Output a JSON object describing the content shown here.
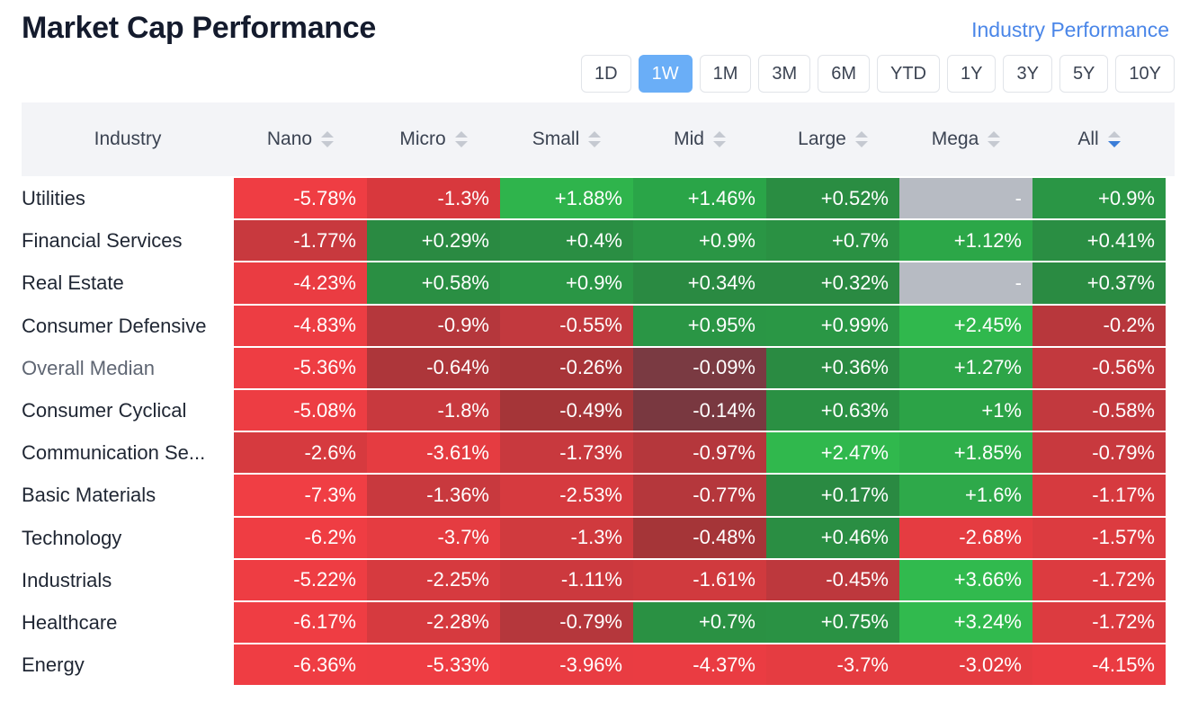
{
  "header": {
    "title": "Market Cap Performance",
    "link_label": "Industry Performance"
  },
  "periods": [
    {
      "label": "1D",
      "active": false
    },
    {
      "label": "1W",
      "active": true
    },
    {
      "label": "1M",
      "active": false
    },
    {
      "label": "3M",
      "active": false
    },
    {
      "label": "6M",
      "active": false
    },
    {
      "label": "YTD",
      "active": false
    },
    {
      "label": "1Y",
      "active": false
    },
    {
      "label": "3Y",
      "active": false
    },
    {
      "label": "5Y",
      "active": false
    },
    {
      "label": "10Y",
      "active": false
    }
  ],
  "table": {
    "industry_header": "Industry",
    "columns": [
      {
        "label": "Nano",
        "sort": "none"
      },
      {
        "label": "Micro",
        "sort": "none"
      },
      {
        "label": "Small",
        "sort": "none"
      },
      {
        "label": "Mid",
        "sort": "none"
      },
      {
        "label": "Large",
        "sort": "none"
      },
      {
        "label": "Mega",
        "sort": "none"
      },
      {
        "label": "All",
        "sort": "desc"
      }
    ],
    "rows": [
      {
        "name": "Utilities",
        "muted": false,
        "cells": [
          {
            "text": "-5.78%",
            "color": "#ef3d43"
          },
          {
            "text": "-1.3%",
            "color": "#d8383d"
          },
          {
            "text": "+1.88%",
            "color": "#2fb44c"
          },
          {
            "text": "+1.46%",
            "color": "#2aa548"
          },
          {
            "text": "+0.52%",
            "color": "#2a8d42"
          },
          {
            "text": "-",
            "color": "#b7bbc3"
          },
          {
            "text": "+0.9%",
            "color": "#2a9645"
          }
        ]
      },
      {
        "name": "Financial Services",
        "muted": false,
        "cells": [
          {
            "text": "-1.77%",
            "color": "#c8393e"
          },
          {
            "text": "+0.29%",
            "color": "#2a8a42"
          },
          {
            "text": "+0.4%",
            "color": "#2a8e43"
          },
          {
            "text": "+0.9%",
            "color": "#2a9645"
          },
          {
            "text": "+0.7%",
            "color": "#2a9143"
          },
          {
            "text": "+1.12%",
            "color": "#2ca748"
          },
          {
            "text": "+0.41%",
            "color": "#2a8e43"
          }
        ]
      },
      {
        "name": "Real Estate",
        "muted": false,
        "cells": [
          {
            "text": "-4.23%",
            "color": "#ea3c42"
          },
          {
            "text": "+0.58%",
            "color": "#2a8f43"
          },
          {
            "text": "+0.9%",
            "color": "#2a9645"
          },
          {
            "text": "+0.34%",
            "color": "#2a8a42"
          },
          {
            "text": "+0.32%",
            "color": "#2a8a42"
          },
          {
            "text": "-",
            "color": "#b7bbc3"
          },
          {
            "text": "+0.37%",
            "color": "#2a8b42"
          }
        ]
      },
      {
        "name": "Consumer Defensive",
        "muted": false,
        "cells": [
          {
            "text": "-4.83%",
            "color": "#ed3d43"
          },
          {
            "text": "-0.9%",
            "color": "#b5373c"
          },
          {
            "text": "-0.55%",
            "color": "#c2393e"
          },
          {
            "text": "+0.95%",
            "color": "#2a9645"
          },
          {
            "text": "+0.99%",
            "color": "#2a9745"
          },
          {
            "text": "+2.45%",
            "color": "#30b84d"
          },
          {
            "text": "-0.2%",
            "color": "#b8373c"
          }
        ]
      },
      {
        "name": "Overall Median",
        "muted": true,
        "cells": [
          {
            "text": "-5.36%",
            "color": "#ee3d43"
          },
          {
            "text": "-0.64%",
            "color": "#ad363a"
          },
          {
            "text": "-0.26%",
            "color": "#a83539"
          },
          {
            "text": "-0.09%",
            "color": "#7a3a42"
          },
          {
            "text": "+0.36%",
            "color": "#2a8b42"
          },
          {
            "text": "+1.27%",
            "color": "#2da548"
          },
          {
            "text": "-0.56%",
            "color": "#c2393e"
          }
        ]
      },
      {
        "name": "Consumer Cyclical",
        "muted": false,
        "cells": [
          {
            "text": "-5.08%",
            "color": "#ed3d43"
          },
          {
            "text": "-1.8%",
            "color": "#c8393e"
          },
          {
            "text": "-0.49%",
            "color": "#a53538"
          },
          {
            "text": "-0.14%",
            "color": "#793840"
          },
          {
            "text": "+0.63%",
            "color": "#2a9043"
          },
          {
            "text": "+1%",
            "color": "#2ca347"
          },
          {
            "text": "-0.58%",
            "color": "#c2393e"
          }
        ]
      },
      {
        "name": "Communication Se...",
        "muted": false,
        "cells": [
          {
            "text": "-2.6%",
            "color": "#d63a3f"
          },
          {
            "text": "-3.61%",
            "color": "#e53c41"
          },
          {
            "text": "-1.73%",
            "color": "#c8393e"
          },
          {
            "text": "-0.97%",
            "color": "#b5373c"
          },
          {
            "text": "+2.47%",
            "color": "#30b84d"
          },
          {
            "text": "+1.85%",
            "color": "#2fb04b"
          },
          {
            "text": "-0.79%",
            "color": "#c8393e"
          }
        ]
      },
      {
        "name": "Basic Materials",
        "muted": false,
        "cells": [
          {
            "text": "-7.3%",
            "color": "#f03e44"
          },
          {
            "text": "-1.36%",
            "color": "#c8393e"
          },
          {
            "text": "-2.53%",
            "color": "#d63a3f"
          },
          {
            "text": "-0.77%",
            "color": "#b5373c"
          },
          {
            "text": "+0.17%",
            "color": "#2a8a42"
          },
          {
            "text": "+1.6%",
            "color": "#2ea94a"
          },
          {
            "text": "-1.17%",
            "color": "#d63a3f"
          }
        ]
      },
      {
        "name": "Technology",
        "muted": false,
        "cells": [
          {
            "text": "-6.2%",
            "color": "#ef3d43"
          },
          {
            "text": "-3.7%",
            "color": "#e53c41"
          },
          {
            "text": "-1.3%",
            "color": "#d03a3e"
          },
          {
            "text": "-0.48%",
            "color": "#a53538"
          },
          {
            "text": "+0.46%",
            "color": "#2a8e43"
          },
          {
            "text": "-2.68%",
            "color": "#e53c41"
          },
          {
            "text": "-1.57%",
            "color": "#dc3b40"
          }
        ]
      },
      {
        "name": "Industrials",
        "muted": false,
        "cells": [
          {
            "text": "-5.22%",
            "color": "#ee3d43"
          },
          {
            "text": "-2.25%",
            "color": "#d63a3f"
          },
          {
            "text": "-1.11%",
            "color": "#cc393e"
          },
          {
            "text": "-1.61%",
            "color": "#d03a3e"
          },
          {
            "text": "-0.45%",
            "color": "#bd383d"
          },
          {
            "text": "+3.66%",
            "color": "#31ba4e"
          },
          {
            "text": "-1.72%",
            "color": "#dc3b40"
          }
        ]
      },
      {
        "name": "Healthcare",
        "muted": false,
        "cells": [
          {
            "text": "-6.17%",
            "color": "#ef3d43"
          },
          {
            "text": "-2.28%",
            "color": "#d63a3f"
          },
          {
            "text": "-0.79%",
            "color": "#b5373c"
          },
          {
            "text": "+0.7%",
            "color": "#2a9143"
          },
          {
            "text": "+0.75%",
            "color": "#2a9244"
          },
          {
            "text": "+3.24%",
            "color": "#31ba4e"
          },
          {
            "text": "-1.72%",
            "color": "#dc3b40"
          }
        ]
      },
      {
        "name": "Energy",
        "muted": false,
        "cells": [
          {
            "text": "-6.36%",
            "color": "#ef3d43"
          },
          {
            "text": "-5.33%",
            "color": "#ee3d43"
          },
          {
            "text": "-3.96%",
            "color": "#e93c42"
          },
          {
            "text": "-4.37%",
            "color": "#ea3c42"
          },
          {
            "text": "-3.7%",
            "color": "#e53c41"
          },
          {
            "text": "-3.02%",
            "color": "#e53c41"
          },
          {
            "text": "-4.15%",
            "color": "#ea3c42"
          }
        ]
      }
    ]
  }
}
